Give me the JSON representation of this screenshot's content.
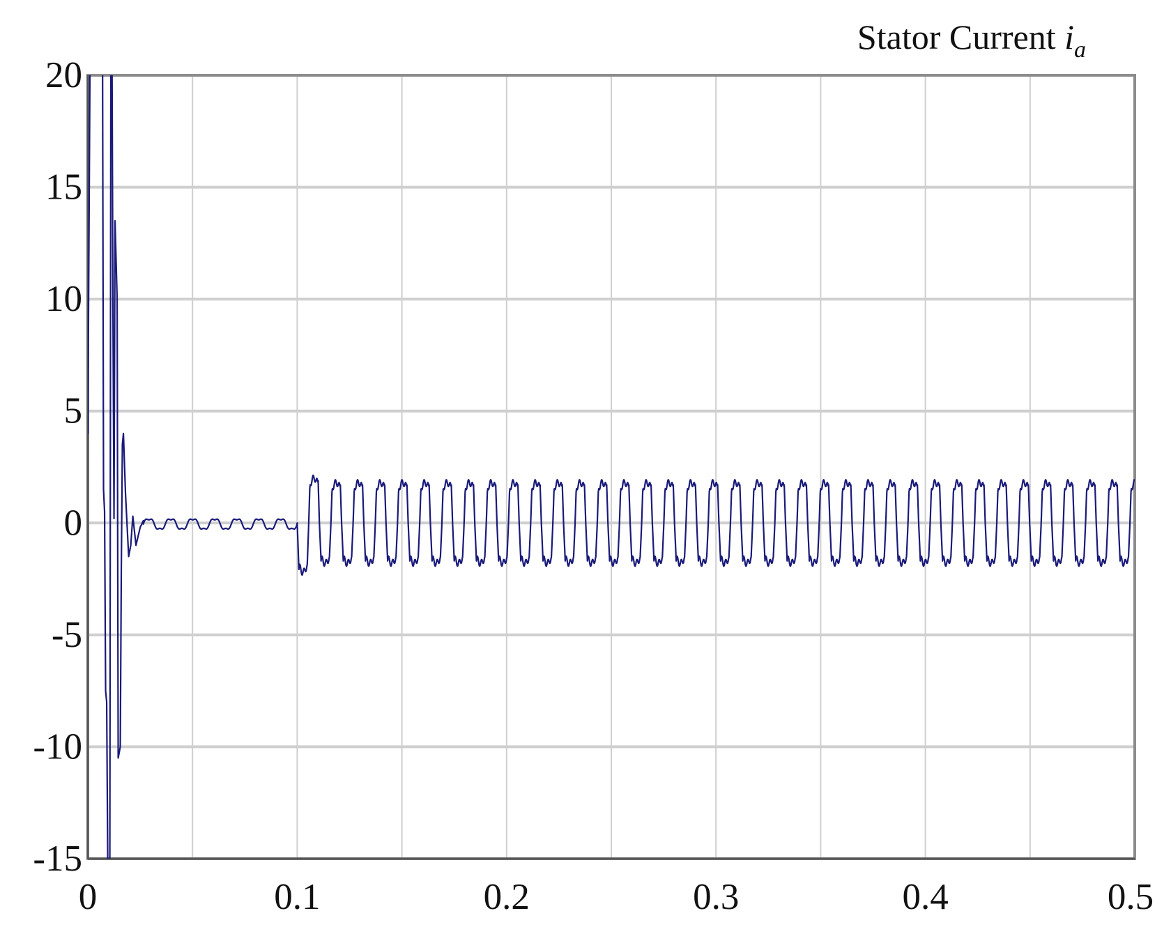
{
  "chart_data": {
    "type": "line",
    "title": "Stator Current ",
    "title_symbol": "i",
    "title_subscript": "a",
    "xlabel": "",
    "ylabel": "",
    "xlim": [
      0,
      0.5
    ],
    "ylim": [
      -15,
      20
    ],
    "x_ticks": [
      0,
      0.1,
      0.2,
      0.3,
      0.4,
      0.5
    ],
    "x_tick_labels": [
      "0",
      "0.1",
      "0.2",
      "0.3",
      "0.4",
      "0.5"
    ],
    "y_ticks": [
      20,
      15,
      10,
      5,
      0,
      -5,
      -10,
      -15
    ],
    "y_tick_labels": [
      "20",
      "15",
      "10",
      "5",
      "0",
      "-5",
      "-10",
      "-15"
    ],
    "x_grid": [
      0,
      0.05,
      0.1,
      0.15,
      0.2,
      0.25,
      0.3,
      0.35,
      0.4,
      0.45,
      0.5
    ],
    "grid": true,
    "legend": false,
    "series": [
      {
        "color": "#1a1a7a",
        "startup_transient": {
          "x": [
            0,
            0.001,
            0.002,
            0.004,
            0.007,
            0.0075,
            0.008,
            0.0085,
            0.009,
            0.0095,
            0.0105,
            0.011,
            0.0115,
            0.012,
            0.0125,
            0.013,
            0.014,
            0.0145,
            0.0155,
            0.016,
            0.0165,
            0.017,
            0.018,
            0.0195,
            0.0205,
            0.0215,
            0.023,
            0.025,
            0.0265
          ],
          "y": [
            4,
            20,
            22,
            22,
            22,
            1.5,
            0.5,
            -7.5,
            -8,
            -15,
            -16,
            20,
            22,
            9.5,
            0.2,
            13.5,
            10,
            -10.5,
            -10,
            -2,
            3.5,
            4,
            1.3,
            -1.5,
            -1,
            0.3,
            -1,
            -0.2,
            0.1
          ]
        },
        "ripple": {
          "x_start": 0.0265,
          "x_end": 0.1,
          "amplitude": 0.25,
          "period": 0.0105,
          "offset": -0.05
        },
        "steady_state": {
          "x_start": 0.1,
          "x_end": 0.5,
          "period": 0.0106,
          "positive_peak": 1.8,
          "negative_peak": -1.8,
          "first_negative_peak": -2.2,
          "first_positive_peak": 2
        }
      }
    ]
  }
}
